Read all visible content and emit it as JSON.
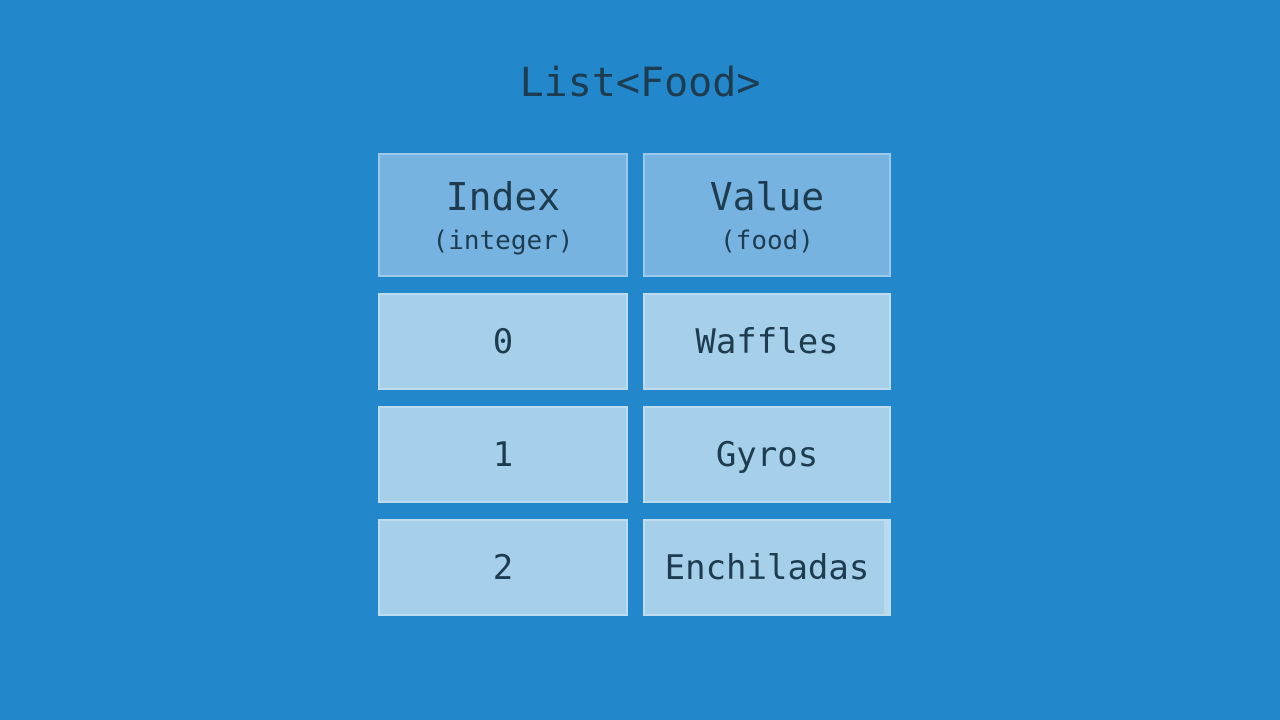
{
  "title": "List<Food>",
  "colors": {
    "background": "#2287cb",
    "header_fill": "#76b3e1",
    "cell_fill": "#a6cfe9",
    "text": "#1e3c50"
  },
  "table": {
    "columns": [
      {
        "header": "Index",
        "subheader": "(integer)"
      },
      {
        "header": "Value",
        "subheader": "(food)"
      }
    ],
    "rows": [
      {
        "index": "0",
        "value": "Waffles"
      },
      {
        "index": "1",
        "value": "Gyros"
      },
      {
        "index": "2",
        "value": "Enchiladas"
      }
    ]
  }
}
